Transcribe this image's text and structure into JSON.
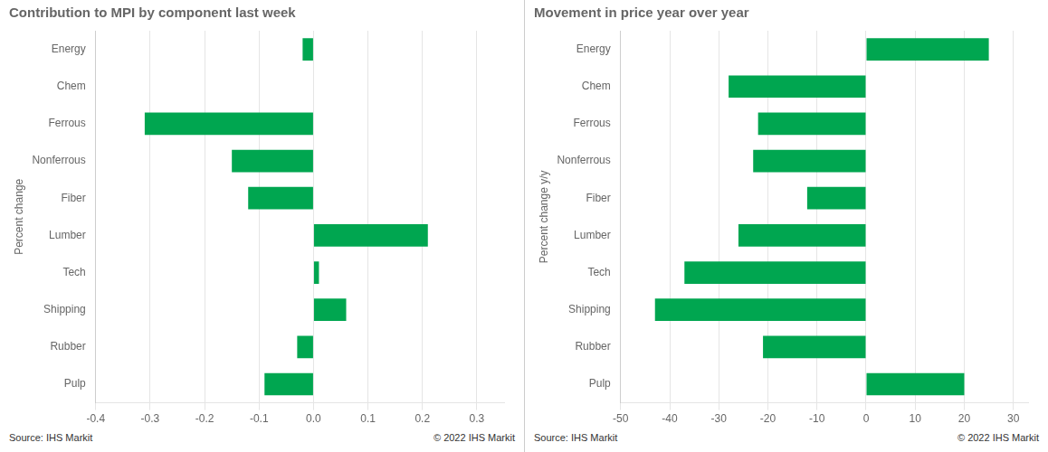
{
  "chart_data": [
    {
      "type": "bar",
      "orientation": "horizontal",
      "title": "Contribution to MPI by component last week",
      "ylabel": "Percent change",
      "categories": [
        "Energy",
        "Chem",
        "Ferrous",
        "Nonferrous",
        "Fiber",
        "Lumber",
        "Tech",
        "Shipping",
        "Rubber",
        "Pulp"
      ],
      "values": [
        -0.02,
        0.0,
        -0.31,
        -0.15,
        -0.12,
        0.21,
        0.01,
        0.06,
        -0.03,
        -0.09
      ],
      "color": "#00a650",
      "xlim": [
        -0.4,
        0.35
      ],
      "xticks": [
        -0.4,
        -0.3,
        -0.2,
        -0.1,
        {
          "value": 0.0,
          "label": "0.0"
        },
        0.1,
        0.2,
        0.3
      ],
      "grid": true,
      "annotations": [
        "Source:  IHS Markit",
        "© 2022  IHS Markit"
      ]
    },
    {
      "type": "bar",
      "orientation": "horizontal",
      "title": "Movement in price year over year",
      "ylabel": "Percent change y/y",
      "categories": [
        "Energy",
        "Chem",
        "Ferrous",
        "Nonferrous",
        "Fiber",
        "Lumber",
        "Tech",
        "Shipping",
        "Rubber",
        "Pulp"
      ],
      "values": [
        25,
        -28,
        -22,
        -23,
        -12,
        -26,
        -37,
        -43,
        -21,
        20
      ],
      "color": "#00a650",
      "xlim": [
        -50,
        33
      ],
      "xticks": [
        -50,
        -40,
        -30,
        -20,
        -10,
        0,
        10,
        20,
        30
      ],
      "grid": true,
      "annotations": [
        "Source:  IHS Markit",
        "© 2022  IHS Markit"
      ]
    }
  ]
}
